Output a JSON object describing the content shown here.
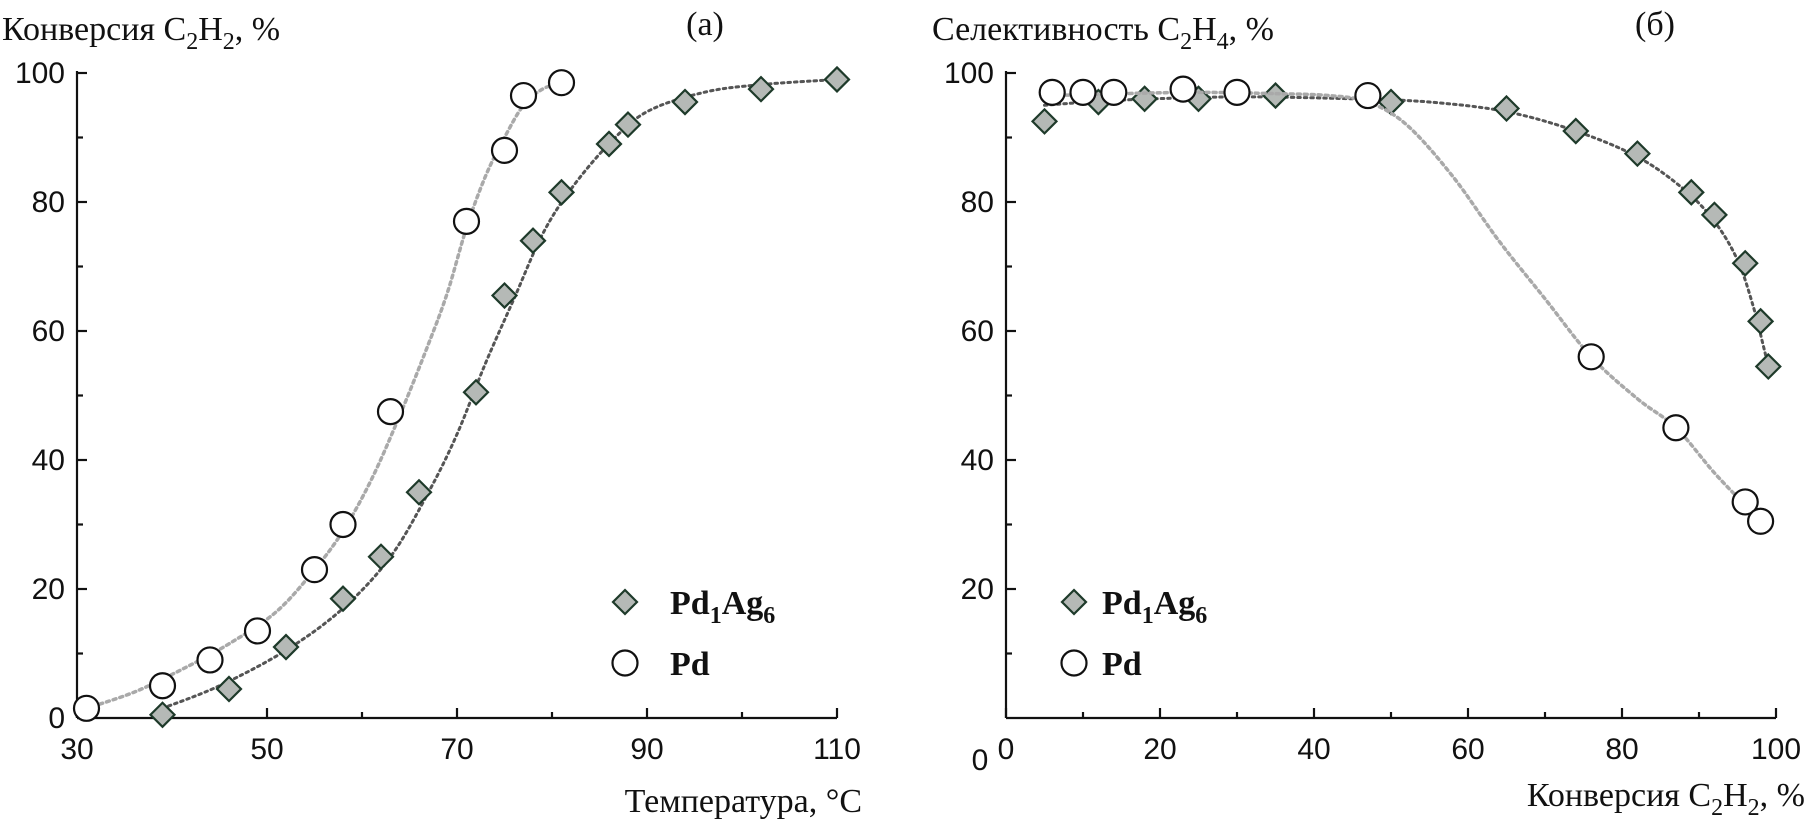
{
  "chart_data": [
    {
      "type": "scatter",
      "panel_label": "(а)",
      "ylabel": {
        "pre": "Конверсия C",
        "s1": "2",
        "mid": "H",
        "s2": "2",
        "post": ", %"
      },
      "xlabel": "Температура, °C",
      "xlim": [
        30,
        110
      ],
      "ylim": [
        0,
        100
      ],
      "xticks": [
        "30",
        "50",
        "70",
        "90",
        "110"
      ],
      "yticks": [
        "0",
        "20",
        "40",
        "60",
        "80",
        "100"
      ],
      "legend_position": "bottom-right",
      "series": [
        {
          "name": {
            "pre": "Pd",
            "s1": "1",
            "mid": "Ag",
            "s2": "6"
          },
          "marker": "diamond",
          "color": "#b5b9b6",
          "edge": "#1e3a2a",
          "line_color": "#555555",
          "x": [
            39,
            46,
            52,
            58,
            62,
            66,
            72,
            75,
            78,
            81,
            86,
            88,
            94,
            102,
            110
          ],
          "y": [
            0.5,
            4.5,
            11,
            18.5,
            25,
            35,
            50.5,
            65.5,
            74,
            81.5,
            89,
            92,
            95.5,
            97.5,
            99
          ],
          "curve": [
            [
              39,
              1.5
            ],
            [
              45,
              5
            ],
            [
              52,
              10.5
            ],
            [
              58,
              17
            ],
            [
              63,
              25
            ],
            [
              67,
              35
            ],
            [
              70,
              44
            ],
            [
              73,
              55
            ],
            [
              76,
              65
            ],
            [
              79,
              75
            ],
            [
              82,
              82
            ],
            [
              86,
              89
            ],
            [
              90,
              94
            ],
            [
              96,
              97
            ],
            [
              102,
              98.2
            ],
            [
              110,
              99
            ]
          ]
        },
        {
          "name": {
            "pre": "Pd",
            "s1": "",
            "mid": "",
            "s2": ""
          },
          "marker": "circle",
          "color": "#ffffff",
          "edge": "#111111",
          "line_color": "#a9a9a9",
          "x": [
            31,
            39,
            44,
            49,
            55,
            58,
            63,
            71,
            75,
            77,
            81
          ],
          "y": [
            1.5,
            5,
            9,
            13.5,
            23,
            30,
            47.5,
            77,
            88,
            96.5,
            98.5
          ],
          "curve": [
            [
              31,
              1.5
            ],
            [
              36,
              4
            ],
            [
              41,
              7.5
            ],
            [
              46,
              11.5
            ],
            [
              51,
              16.5
            ],
            [
              55,
              23
            ],
            [
              58,
              29
            ],
            [
              61,
              37
            ],
            [
              64,
              47
            ],
            [
              67,
              58
            ],
            [
              69,
              66
            ],
            [
              71,
              76
            ],
            [
              73,
              84
            ],
            [
              75,
              90
            ],
            [
              77,
              95
            ],
            [
              79,
              97.5
            ],
            [
              81,
              98.5
            ]
          ]
        }
      ]
    },
    {
      "type": "scatter",
      "panel_label": "(б)",
      "ylabel": {
        "pre": "Селективность C",
        "s1": "2",
        "mid": "H",
        "s2": "4",
        "post": ", %"
      },
      "xlabel": {
        "pre": "Конверсия C",
        "s1": "2",
        "mid": "H",
        "s2": "2",
        "post": ", %"
      },
      "xlim": [
        0,
        100
      ],
      "ylim": [
        0,
        100
      ],
      "xticks": [
        "0",
        "20",
        "40",
        "60",
        "80",
        "100"
      ],
      "yticks": [
        "20",
        "40",
        "60",
        "80",
        "100"
      ],
      "legend_position": "bottom-left",
      "series": [
        {
          "name": {
            "pre": "Pd",
            "s1": "1",
            "mid": "Ag",
            "s2": "6"
          },
          "marker": "diamond",
          "color": "#b5b9b6",
          "edge": "#1e3a2a",
          "line_color": "#555555",
          "x": [
            5,
            12,
            18,
            25,
            35,
            50,
            65,
            74,
            82,
            89,
            92,
            96,
            98,
            99
          ],
          "y": [
            92.5,
            95.5,
            96,
            96,
            96.5,
            95.5,
            94.5,
            91,
            87.5,
            81.5,
            78,
            70.5,
            61.5,
            54.5
          ],
          "curve": [
            [
              5,
              95
            ],
            [
              15,
              95.8
            ],
            [
              30,
              96.3
            ],
            [
              45,
              96
            ],
            [
              55,
              95.5
            ],
            [
              65,
              94
            ],
            [
              74,
              91
            ],
            [
              82,
              87
            ],
            [
              88,
              82
            ],
            [
              92,
              77
            ],
            [
              95,
              71
            ],
            [
              97,
              64
            ],
            [
              98.5,
              57
            ],
            [
              99,
              54.5
            ]
          ]
        },
        {
          "name": {
            "pre": "Pd",
            "s1": "",
            "mid": "",
            "s2": ""
          },
          "marker": "circle",
          "color": "#ffffff",
          "edge": "#111111",
          "line_color": "#a9a9a9",
          "x": [
            6,
            10,
            14,
            23,
            30,
            47,
            76,
            87,
            96,
            98
          ],
          "y": [
            97,
            97,
            97,
            97.5,
            97,
            96.5,
            56,
            45,
            33.5,
            30.5
          ],
          "curve": [
            [
              6,
              96.5
            ],
            [
              15,
              96.8
            ],
            [
              25,
              97
            ],
            [
              35,
              96.8
            ],
            [
              42,
              96.5
            ],
            [
              47,
              95.5
            ],
            [
              52,
              92
            ],
            [
              58,
              84
            ],
            [
              64,
              74
            ],
            [
              70,
              65
            ],
            [
              76,
              56
            ],
            [
              82,
              49.5
            ],
            [
              87,
              45
            ],
            [
              92,
              38
            ],
            [
              96,
              33
            ],
            [
              98,
              30.5
            ]
          ]
        }
      ]
    }
  ]
}
